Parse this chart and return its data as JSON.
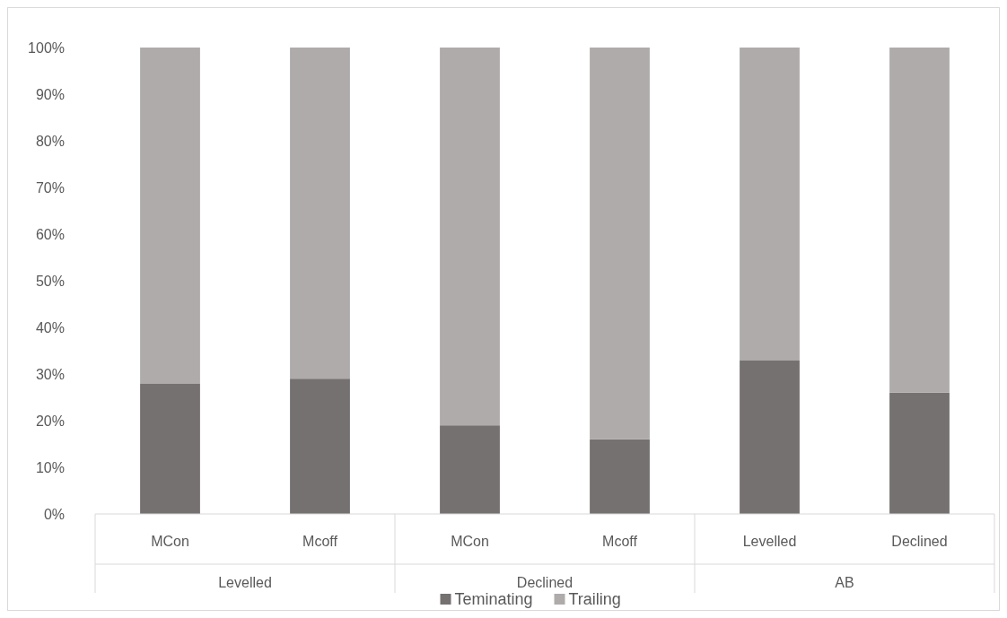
{
  "chart_data": {
    "type": "bar",
    "stacked": true,
    "categories": [
      "MCon",
      "Mcoff",
      "MCon",
      "Mcoff",
      "Levelled",
      "Declined"
    ],
    "series": [
      {
        "name": "Teminating",
        "color": "#767171",
        "values": [
          28,
          29,
          19,
          16,
          33,
          26
        ]
      },
      {
        "name": "Trailing",
        "color": "#afabab",
        "values": [
          72,
          71,
          81,
          84,
          67,
          74
        ]
      }
    ],
    "ylim": [
      0,
      100
    ],
    "yticks": [
      {
        "value": 0,
        "label": "0%"
      },
      {
        "value": 10,
        "label": "10%"
      },
      {
        "value": 20,
        "label": "20%"
      },
      {
        "value": 30,
        "label": "30%"
      },
      {
        "value": 40,
        "label": "40%"
      },
      {
        "value": 50,
        "label": "50%"
      },
      {
        "value": 60,
        "label": "60%"
      },
      {
        "value": 70,
        "label": "70%"
      },
      {
        "value": 80,
        "label": "80%"
      },
      {
        "value": 90,
        "label": "90%"
      },
      {
        "value": 100,
        "label": "100%"
      }
    ],
    "annotations": [
      "Levelled",
      "Declined",
      "AB"
    ],
    "legend": "bottom",
    "grid": false
  }
}
